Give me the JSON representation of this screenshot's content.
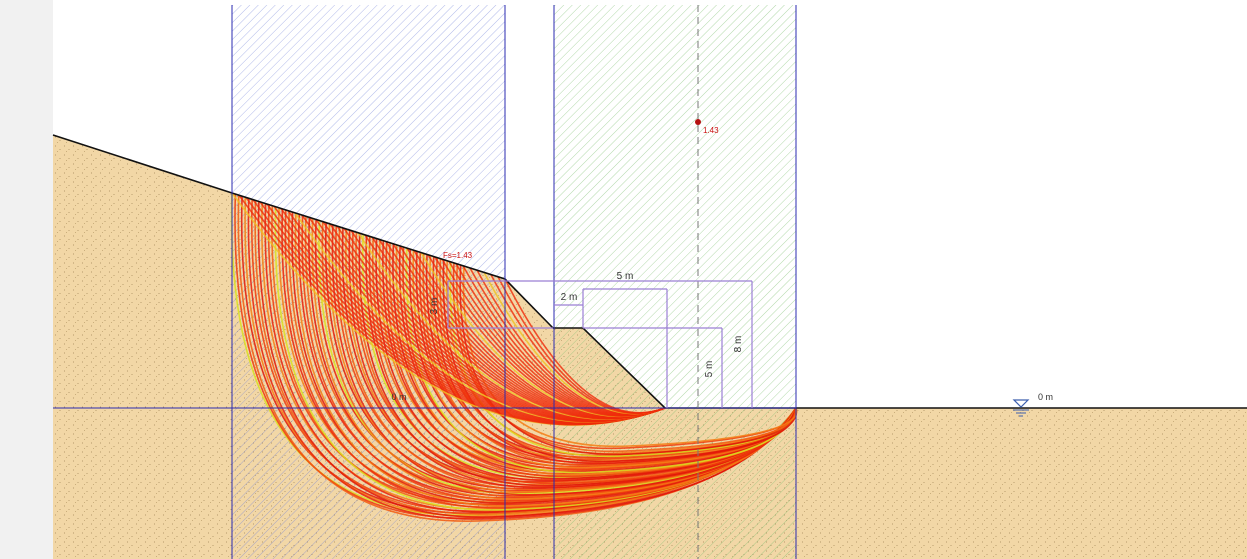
{
  "view": {
    "background": "#ffffff",
    "margin_color": "#f1f1f1",
    "soil_color": "#f2d7a6",
    "soil_dot_color": "#a58a5c",
    "search_area_1_color": "#6f7fd8",
    "search_area_2_color": "#7fbf72",
    "boundary_line_color": "#2b2bb0",
    "dimension_color": "#9b7fd4",
    "result_color": "#cc1111"
  },
  "results": {
    "fs_label": "Fs=1.43",
    "centre_label": "1.43"
  },
  "dimensions": {
    "berm_height": "3 m",
    "berm_width": "2 m",
    "upper_width": "5 m",
    "lower_height": "5 m",
    "total_height": "8 m",
    "datum_label": "0 m"
  },
  "water": {
    "level_label": "0 m",
    "symbol": "water-table-icon"
  }
}
